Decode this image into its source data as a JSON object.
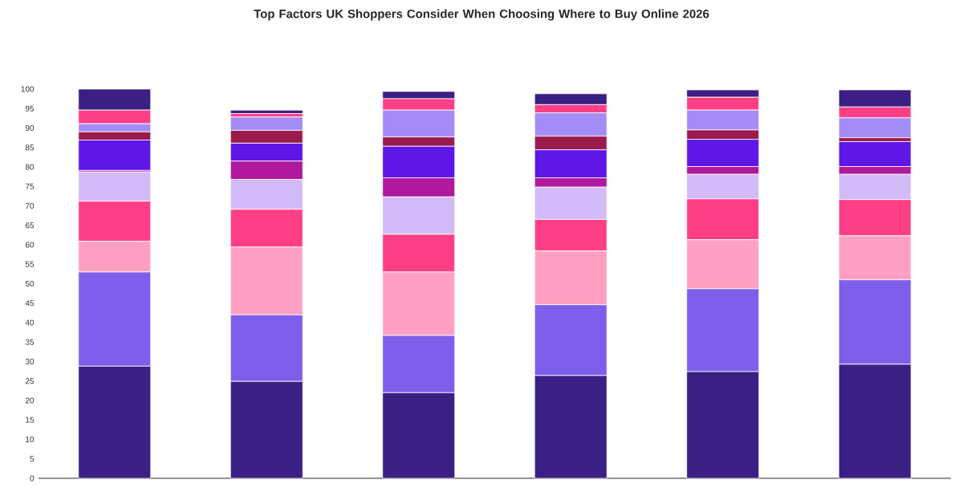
{
  "chart_data": {
    "type": "bar",
    "stacked": true,
    "title": "Top Factors UK Shoppers Consider When Choosing Where to Buy Online 2026",
    "categories": [
      null,
      null,
      null,
      null,
      null,
      null
    ],
    "series": [
      {
        "color": "#3a1f84",
        "values": [
          28.8,
          24.9,
          22.0,
          26.4,
          27.4,
          29.3
        ]
      },
      {
        "color": "#7e5fec",
        "values": [
          24.2,
          17.1,
          14.7,
          18.2,
          21.3,
          21.7
        ]
      },
      {
        "color": "#ffa0c2",
        "values": [
          7.9,
          17.4,
          16.3,
          13.8,
          12.6,
          11.3
        ]
      },
      {
        "color": "#ff3f85",
        "values": [
          10.3,
          9.7,
          9.7,
          8.1,
          10.5,
          9.3
        ]
      },
      {
        "color": "#d3baf8",
        "values": [
          7.5,
          7.7,
          9.6,
          8.3,
          6.3,
          6.5
        ]
      },
      {
        "color": "#b0189e",
        "values": [
          0.4,
          4.7,
          4.9,
          2.4,
          2.0,
          2.0
        ]
      },
      {
        "color": "#5e17e6",
        "values": [
          7.8,
          4.6,
          8.1,
          7.2,
          7.0,
          6.4
        ]
      },
      {
        "color": "#9b1b4c",
        "values": [
          2.1,
          3.3,
          2.4,
          3.5,
          2.4,
          1.0
        ]
      },
      {
        "color": "#a48cf7",
        "values": [
          2.1,
          3.4,
          6.9,
          6.0,
          5.1,
          5.1
        ]
      },
      {
        "color": "#ff3f85",
        "values": [
          3.5,
          0.9,
          2.9,
          2.1,
          3.3,
          2.8
        ]
      },
      {
        "color": "#3a1f84",
        "values": [
          5.4,
          0.9,
          1.9,
          2.8,
          1.9,
          4.4
        ]
      }
    ],
    "ylim": [
      0,
      100
    ],
    "yticks": [
      0,
      5,
      10,
      15,
      20,
      25,
      30,
      35,
      40,
      45,
      50,
      55,
      60,
      65,
      70,
      75,
      80,
      85,
      90,
      95,
      100
    ],
    "tick_labels": "y"
  }
}
